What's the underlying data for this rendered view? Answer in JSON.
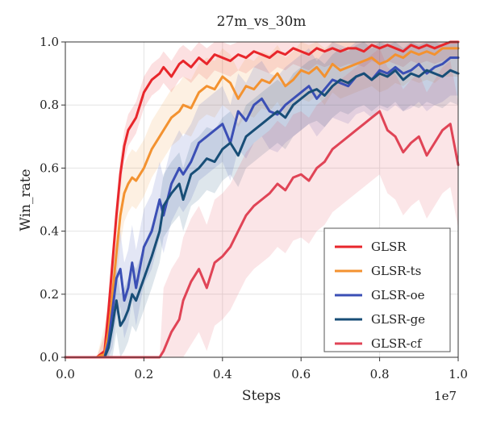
{
  "chart_data": {
    "type": "line",
    "title": "27m_vs_30m",
    "xlabel": "Steps",
    "ylabel": "Win_rate",
    "x_scale_label": "1e7",
    "xlim": [
      0.0,
      1.0
    ],
    "ylim": [
      0.0,
      1.0
    ],
    "x_ticks": [
      "0.0",
      "0.2",
      "0.4",
      "0.6",
      "0.8",
      "1.0"
    ],
    "y_ticks": [
      "0.0",
      "0.2",
      "0.4",
      "0.6",
      "0.8",
      "1.0"
    ],
    "grid": true,
    "legend_position": "lower-right",
    "x": [
      0.0,
      0.05,
      0.08,
      0.1,
      0.11,
      0.12,
      0.13,
      0.14,
      0.15,
      0.16,
      0.17,
      0.18,
      0.2,
      0.22,
      0.24,
      0.25,
      0.27,
      0.29,
      0.3,
      0.32,
      0.34,
      0.36,
      0.38,
      0.4,
      0.42,
      0.44,
      0.46,
      0.48,
      0.5,
      0.52,
      0.54,
      0.56,
      0.58,
      0.6,
      0.62,
      0.64,
      0.66,
      0.68,
      0.7,
      0.72,
      0.74,
      0.76,
      0.78,
      0.8,
      0.82,
      0.84,
      0.86,
      0.88,
      0.9,
      0.92,
      0.94,
      0.96,
      0.98,
      1.0
    ],
    "series": [
      {
        "name": "GLSR",
        "color": "#e8262b",
        "band": 0.05,
        "values": [
          0.0,
          0.0,
          0.0,
          0.02,
          0.15,
          0.3,
          0.45,
          0.58,
          0.67,
          0.72,
          0.74,
          0.76,
          0.84,
          0.88,
          0.9,
          0.92,
          0.89,
          0.93,
          0.94,
          0.92,
          0.95,
          0.93,
          0.96,
          0.95,
          0.94,
          0.96,
          0.95,
          0.97,
          0.96,
          0.95,
          0.97,
          0.96,
          0.98,
          0.97,
          0.96,
          0.98,
          0.97,
          0.98,
          0.97,
          0.98,
          0.98,
          0.97,
          0.99,
          0.98,
          0.99,
          0.98,
          0.97,
          0.99,
          0.98,
          0.99,
          0.98,
          0.99,
          1.0,
          1.0
        ]
      },
      {
        "name": "GLSR-ts",
        "color": "#f39230",
        "band": 0.09,
        "values": [
          0.0,
          0.0,
          0.0,
          0.01,
          0.08,
          0.2,
          0.33,
          0.45,
          0.52,
          0.55,
          0.57,
          0.56,
          0.6,
          0.66,
          0.7,
          0.72,
          0.76,
          0.78,
          0.8,
          0.79,
          0.84,
          0.86,
          0.85,
          0.89,
          0.87,
          0.82,
          0.86,
          0.85,
          0.88,
          0.87,
          0.9,
          0.86,
          0.88,
          0.91,
          0.9,
          0.92,
          0.89,
          0.93,
          0.91,
          0.92,
          0.93,
          0.94,
          0.95,
          0.93,
          0.94,
          0.96,
          0.95,
          0.97,
          0.96,
          0.97,
          0.96,
          0.98,
          0.98,
          0.98
        ]
      },
      {
        "name": "GLSR-oe",
        "color": "#3b4fb5",
        "band": 0.12,
        "values": [
          0.0,
          0.0,
          0.0,
          0.0,
          0.05,
          0.15,
          0.25,
          0.28,
          0.18,
          0.22,
          0.3,
          0.22,
          0.35,
          0.4,
          0.5,
          0.45,
          0.55,
          0.6,
          0.58,
          0.62,
          0.68,
          0.7,
          0.72,
          0.74,
          0.68,
          0.78,
          0.75,
          0.8,
          0.82,
          0.78,
          0.77,
          0.8,
          0.82,
          0.84,
          0.86,
          0.82,
          0.85,
          0.88,
          0.87,
          0.86,
          0.89,
          0.9,
          0.88,
          0.91,
          0.9,
          0.92,
          0.9,
          0.91,
          0.93,
          0.9,
          0.92,
          0.93,
          0.95,
          0.95
        ]
      },
      {
        "name": "GLSR-ge",
        "color": "#184e77",
        "band": 0.1,
        "values": [
          0.0,
          0.0,
          0.0,
          0.0,
          0.03,
          0.1,
          0.18,
          0.1,
          0.12,
          0.15,
          0.2,
          0.18,
          0.25,
          0.32,
          0.4,
          0.48,
          0.52,
          0.55,
          0.5,
          0.58,
          0.6,
          0.63,
          0.62,
          0.66,
          0.68,
          0.64,
          0.7,
          0.72,
          0.74,
          0.76,
          0.78,
          0.76,
          0.8,
          0.82,
          0.84,
          0.85,
          0.83,
          0.86,
          0.88,
          0.87,
          0.89,
          0.9,
          0.88,
          0.9,
          0.89,
          0.91,
          0.88,
          0.9,
          0.89,
          0.91,
          0.9,
          0.89,
          0.91,
          0.9
        ]
      },
      {
        "name": "GLSR-cf",
        "color": "#e04456",
        "band": 0.2,
        "values": [
          0.0,
          0.0,
          0.0,
          0.0,
          0.0,
          0.0,
          0.0,
          0.0,
          0.0,
          0.0,
          0.0,
          0.0,
          0.0,
          0.0,
          0.0,
          0.02,
          0.08,
          0.12,
          0.18,
          0.24,
          0.28,
          0.22,
          0.3,
          0.32,
          0.35,
          0.4,
          0.45,
          0.48,
          0.5,
          0.52,
          0.55,
          0.53,
          0.57,
          0.58,
          0.56,
          0.6,
          0.62,
          0.66,
          0.68,
          0.7,
          0.72,
          0.74,
          0.76,
          0.78,
          0.72,
          0.7,
          0.65,
          0.68,
          0.7,
          0.64,
          0.68,
          0.72,
          0.74,
          0.61
        ]
      }
    ]
  }
}
